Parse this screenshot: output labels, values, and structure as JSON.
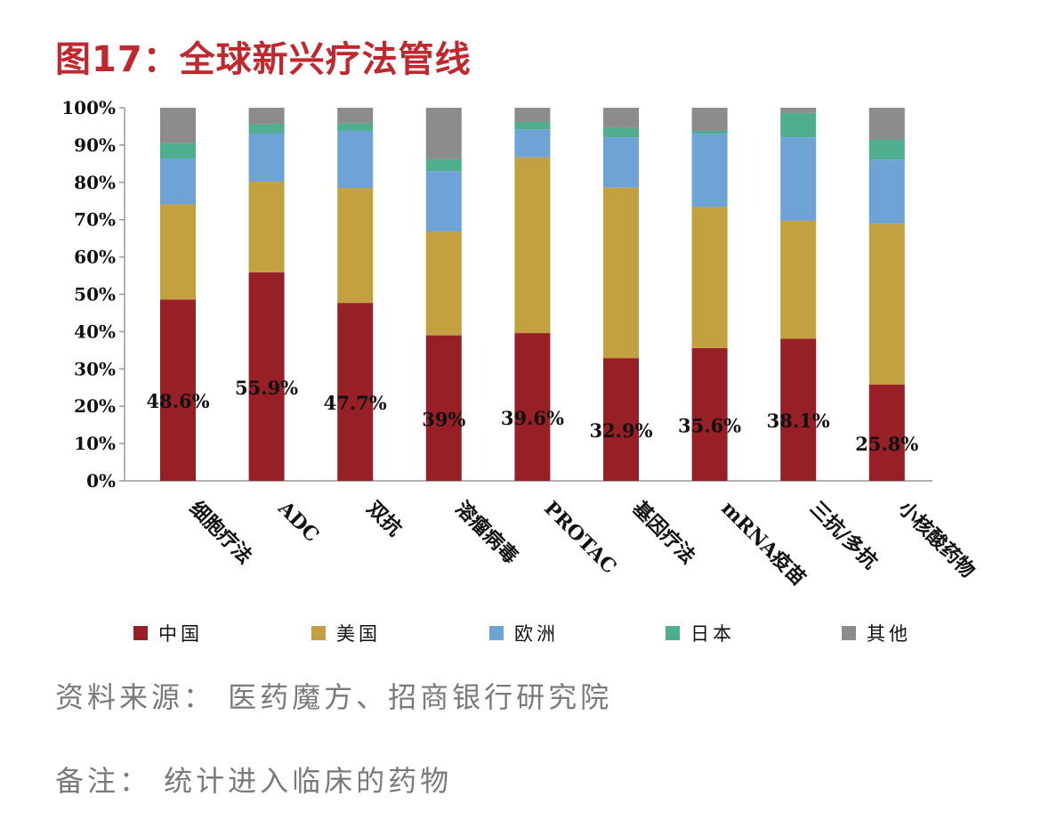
{
  "title": "图17：全球新兴疗法管线",
  "source": "资料来源：  医药魔方、招商银行研究院",
  "remark": "备注：  统计进入临床的药物",
  "chart_data": {
    "type": "bar",
    "stacked": true,
    "percent_stacked": true,
    "categories": [
      "细胞疗法",
      "ADC",
      "双抗",
      "溶瘤病毒",
      "PROTAC",
      "基因疗法",
      "mRNA疫苗",
      "三抗/多抗",
      "小核酸药物"
    ],
    "series": [
      {
        "name": "中国",
        "color": "#962026",
        "values": [
          48.6,
          55.9,
          47.7,
          39.0,
          39.6,
          32.9,
          35.6,
          38.1,
          25.8
        ]
      },
      {
        "name": "美国",
        "color": "#c3a040",
        "values": [
          25.5,
          24.3,
          30.8,
          27.8,
          47.1,
          45.7,
          37.8,
          31.6,
          43.1
        ]
      },
      {
        "name": "欧洲",
        "color": "#6ea3d6",
        "values": [
          12.3,
          13.0,
          15.3,
          16.2,
          7.5,
          13.5,
          19.6,
          22.4,
          17.2
        ]
      },
      {
        "name": "日本",
        "color": "#4fae8f",
        "values": [
          4.1,
          2.4,
          2.0,
          3.3,
          2.0,
          2.5,
          0.8,
          6.5,
          5.3
        ]
      },
      {
        "name": "其他",
        "color": "#8c8c8c",
        "values": [
          9.5,
          4.4,
          4.2,
          13.7,
          3.8,
          5.4,
          6.2,
          1.4,
          8.6
        ]
      }
    ],
    "data_labels": [
      "48.6%",
      "55.9%",
      "47.7%",
      "39%",
      "39.6%",
      "32.9%",
      "35.6%",
      "38.1%",
      "25.8%"
    ],
    "y_ticks": [
      "0%",
      "10%",
      "20%",
      "30%",
      "40%",
      "50%",
      "60%",
      "70%",
      "80%",
      "90%",
      "100%"
    ],
    "ylim": [
      0,
      100
    ],
    "grid": false,
    "legend_position": "bottom"
  }
}
